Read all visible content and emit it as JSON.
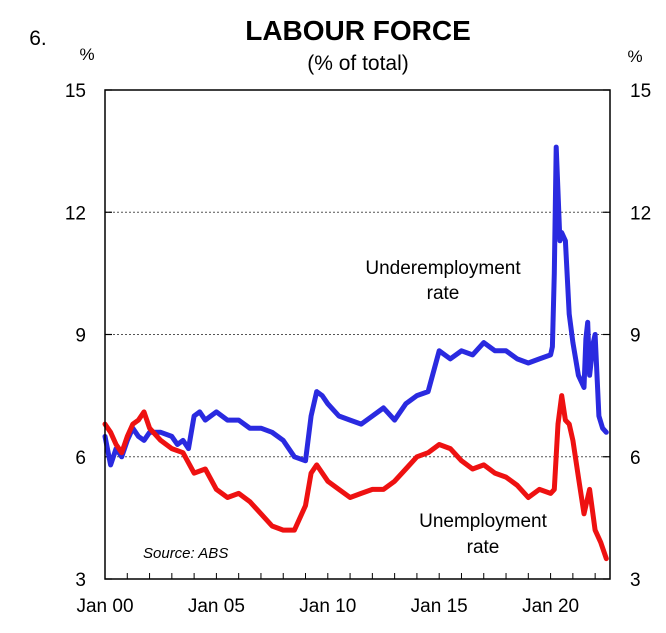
{
  "chart_data": {
    "type": "line",
    "number": "6.",
    "title": "LABOUR FORCE",
    "subtitle": "(% of total)",
    "ylabel_left": "%",
    "ylabel_right": "%",
    "ylim": [
      3,
      15
    ],
    "yticks": [
      "15",
      "12",
      "9",
      "6",
      "3"
    ],
    "xlim": [
      "2000-01",
      "2022-09"
    ],
    "xticks": [
      "Jan 00",
      "Jan 05",
      "Jan 10",
      "Jan 15",
      "Jan 20"
    ],
    "grid": true,
    "source": "Source: ABS",
    "series": [
      {
        "name_lines": [
          "Underemployment",
          "rate"
        ],
        "color": "#2a2ae0",
        "points": [
          [
            "2000-01",
            6.5
          ],
          [
            "2000-04",
            5.8
          ],
          [
            "2000-07",
            6.2
          ],
          [
            "2000-10",
            6.0
          ],
          [
            "2001-01",
            6.4
          ],
          [
            "2001-04",
            6.7
          ],
          [
            "2001-07",
            6.5
          ],
          [
            "2001-10",
            6.4
          ],
          [
            "2002-01",
            6.6
          ],
          [
            "2002-07",
            6.6
          ],
          [
            "2003-01",
            6.5
          ],
          [
            "2003-04",
            6.3
          ],
          [
            "2003-07",
            6.4
          ],
          [
            "2003-10",
            6.2
          ],
          [
            "2004-01",
            7.0
          ],
          [
            "2004-04",
            7.1
          ],
          [
            "2004-07",
            6.9
          ],
          [
            "2004-10",
            7.0
          ],
          [
            "2005-01",
            7.1
          ],
          [
            "2005-07",
            6.9
          ],
          [
            "2006-01",
            6.9
          ],
          [
            "2006-07",
            6.7
          ],
          [
            "2007-01",
            6.7
          ],
          [
            "2007-07",
            6.6
          ],
          [
            "2008-01",
            6.4
          ],
          [
            "2008-07",
            6.0
          ],
          [
            "2009-01",
            5.9
          ],
          [
            "2009-04",
            7.0
          ],
          [
            "2009-07",
            7.6
          ],
          [
            "2009-10",
            7.5
          ],
          [
            "2010-01",
            7.3
          ],
          [
            "2010-07",
            7.0
          ],
          [
            "2011-01",
            6.9
          ],
          [
            "2011-07",
            6.8
          ],
          [
            "2012-01",
            7.0
          ],
          [
            "2012-07",
            7.2
          ],
          [
            "2013-01",
            6.9
          ],
          [
            "2013-07",
            7.3
          ],
          [
            "2014-01",
            7.5
          ],
          [
            "2014-07",
            7.6
          ],
          [
            "2015-01",
            8.6
          ],
          [
            "2015-07",
            8.4
          ],
          [
            "2016-01",
            8.6
          ],
          [
            "2016-07",
            8.5
          ],
          [
            "2017-01",
            8.8
          ],
          [
            "2017-07",
            8.6
          ],
          [
            "2018-01",
            8.6
          ],
          [
            "2018-07",
            8.4
          ],
          [
            "2019-01",
            8.3
          ],
          [
            "2019-07",
            8.4
          ],
          [
            "2020-01",
            8.5
          ],
          [
            "2020-02",
            8.7
          ],
          [
            "2020-03",
            10.5
          ],
          [
            "2020-04",
            13.6
          ],
          [
            "2020-05",
            12.5
          ],
          [
            "2020-06",
            11.3
          ],
          [
            "2020-07",
            11.5
          ],
          [
            "2020-09",
            11.3
          ],
          [
            "2020-11",
            9.5
          ],
          [
            "2021-01",
            8.8
          ],
          [
            "2021-04",
            8.0
          ],
          [
            "2021-07",
            7.7
          ],
          [
            "2021-08",
            8.9
          ],
          [
            "2021-09",
            9.3
          ],
          [
            "2021-10",
            8.0
          ],
          [
            "2021-12",
            8.8
          ],
          [
            "2022-01",
            9.0
          ],
          [
            "2022-03",
            7.0
          ],
          [
            "2022-05",
            6.7
          ],
          [
            "2022-07",
            6.6
          ]
        ]
      },
      {
        "name_lines": [
          "Unemployment",
          "rate"
        ],
        "color": "#ee1111",
        "points": [
          [
            "2000-01",
            6.8
          ],
          [
            "2000-04",
            6.6
          ],
          [
            "2000-07",
            6.3
          ],
          [
            "2000-10",
            6.1
          ],
          [
            "2001-01",
            6.5
          ],
          [
            "2001-04",
            6.8
          ],
          [
            "2001-07",
            6.9
          ],
          [
            "2001-10",
            7.1
          ],
          [
            "2002-01",
            6.7
          ],
          [
            "2002-07",
            6.4
          ],
          [
            "2003-01",
            6.2
          ],
          [
            "2003-07",
            6.1
          ],
          [
            "2004-01",
            5.6
          ],
          [
            "2004-07",
            5.7
          ],
          [
            "2005-01",
            5.2
          ],
          [
            "2005-07",
            5.0
          ],
          [
            "2006-01",
            5.1
          ],
          [
            "2006-07",
            4.9
          ],
          [
            "2007-01",
            4.6
          ],
          [
            "2007-07",
            4.3
          ],
          [
            "2008-01",
            4.2
          ],
          [
            "2008-07",
            4.2
          ],
          [
            "2009-01",
            4.8
          ],
          [
            "2009-04",
            5.6
          ],
          [
            "2009-07",
            5.8
          ],
          [
            "2010-01",
            5.4
          ],
          [
            "2010-07",
            5.2
          ],
          [
            "2011-01",
            5.0
          ],
          [
            "2011-07",
            5.1
          ],
          [
            "2012-01",
            5.2
          ],
          [
            "2012-07",
            5.2
          ],
          [
            "2013-01",
            5.4
          ],
          [
            "2013-07",
            5.7
          ],
          [
            "2014-01",
            6.0
          ],
          [
            "2014-07",
            6.1
          ],
          [
            "2015-01",
            6.3
          ],
          [
            "2015-07",
            6.2
          ],
          [
            "2016-01",
            5.9
          ],
          [
            "2016-07",
            5.7
          ],
          [
            "2017-01",
            5.8
          ],
          [
            "2017-07",
            5.6
          ],
          [
            "2018-01",
            5.5
          ],
          [
            "2018-07",
            5.3
          ],
          [
            "2019-01",
            5.0
          ],
          [
            "2019-07",
            5.2
          ],
          [
            "2020-01",
            5.1
          ],
          [
            "2020-03",
            5.2
          ],
          [
            "2020-05",
            6.8
          ],
          [
            "2020-07",
            7.5
          ],
          [
            "2020-09",
            6.9
          ],
          [
            "2020-11",
            6.8
          ],
          [
            "2021-01",
            6.4
          ],
          [
            "2021-04",
            5.5
          ],
          [
            "2021-07",
            4.6
          ],
          [
            "2021-10",
            5.2
          ],
          [
            "2022-01",
            4.2
          ],
          [
            "2022-04",
            3.9
          ],
          [
            "2022-07",
            3.5
          ]
        ]
      }
    ]
  }
}
